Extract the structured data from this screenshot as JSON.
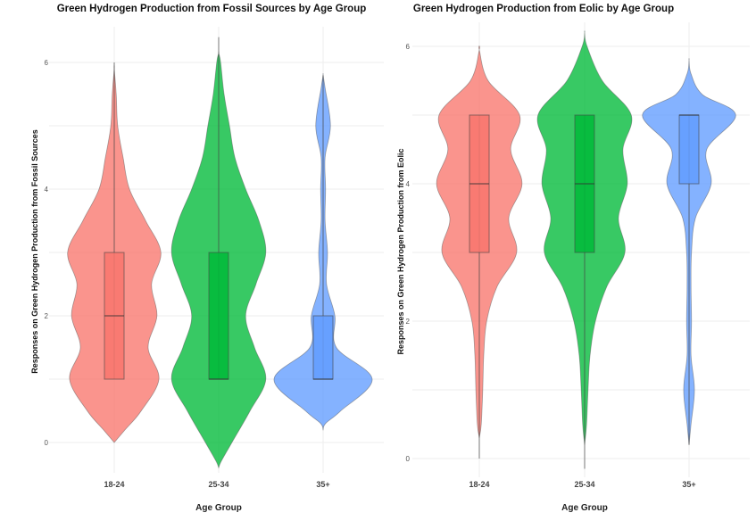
{
  "chart_data": [
    {
      "type": "violin",
      "title": "Green Hydrogen Production from Fossil Sources by Age Group",
      "xlabel": "Age Group",
      "ylabel": "Responses on Green Hydrogen Production from Fossil Sources",
      "ylim": [
        -0.5,
        6.5
      ],
      "yticks": [
        "0",
        "2",
        "4",
        "6"
      ],
      "grid": true,
      "categories": [
        "18-24",
        "25-34",
        "35+"
      ],
      "colors": [
        "#F8766D",
        "#00BA38",
        "#619CFF"
      ],
      "series": [
        {
          "name": "18-24",
          "box": {
            "q1": 1,
            "median": 2,
            "q3": 3,
            "whisker_low": 1,
            "whisker_high": 6
          },
          "density": [
            [
              0,
              0
            ],
            [
              0.2,
              0.22
            ],
            [
              0.5,
              0.55
            ],
            [
              1,
              0.91
            ],
            [
              1.5,
              0.69
            ],
            [
              2,
              0.87
            ],
            [
              2.5,
              0.76
            ],
            [
              3,
              0.95
            ],
            [
              3.5,
              0.64
            ],
            [
              4,
              0.31
            ],
            [
              4.5,
              0.18
            ],
            [
              5,
              0.07
            ],
            [
              5.5,
              0.04
            ],
            [
              5.9,
              0
            ]
          ]
        },
        {
          "name": "25-34",
          "box": {
            "q1": 1,
            "median": 1,
            "q3": 3,
            "whisker_low": 1,
            "whisker_high": 6.4
          },
          "density": [
            [
              -0.4,
              0
            ],
            [
              -0.3,
              0.05
            ],
            [
              0,
              0.27
            ],
            [
              0.5,
              0.64
            ],
            [
              1,
              0.96
            ],
            [
              1.5,
              0.73
            ],
            [
              2,
              0.55
            ],
            [
              2.5,
              0.76
            ],
            [
              3,
              0.96
            ],
            [
              3.5,
              0.82
            ],
            [
              4,
              0.55
            ],
            [
              4.5,
              0.33
            ],
            [
              5,
              0.22
            ],
            [
              5.5,
              0.11
            ],
            [
              6,
              0.04
            ],
            [
              6.15,
              0
            ]
          ]
        },
        {
          "name": "35+",
          "box": {
            "q1": 1,
            "median": 1,
            "q3": 2,
            "whisker_low": 1,
            "whisker_high": 5.8
          },
          "density": [
            [
              0.2,
              0
            ],
            [
              0.3,
              0.05
            ],
            [
              0.5,
              0.36
            ],
            [
              1,
              1.0
            ],
            [
              1.5,
              0.27
            ],
            [
              2,
              0.24
            ],
            [
              2.5,
              0.07
            ],
            [
              3,
              0.09
            ],
            [
              3.5,
              0.04
            ],
            [
              4,
              0.05
            ],
            [
              4.5,
              0.04
            ],
            [
              5,
              0.15
            ],
            [
              5.6,
              0.04
            ],
            [
              5.8,
              0
            ]
          ]
        }
      ]
    },
    {
      "type": "violin",
      "title": "Green Hydrogen Production from Eolic by Age Group",
      "xlabel": "Age Group",
      "ylabel": "Responses on Green Hydrogen Production from Eolic",
      "ylim": [
        -0.3,
        6.4
      ],
      "yticks": [
        "0",
        "2",
        "4",
        "6"
      ],
      "grid": true,
      "categories": [
        "18-24",
        "25-34",
        "35+"
      ],
      "colors": [
        "#F8766D",
        "#00BA38",
        "#619CFF"
      ],
      "series": [
        {
          "name": "18-24",
          "box": {
            "q1": 3,
            "median": 4,
            "q3": 5,
            "whisker_low": 0,
            "whisker_high": 5
          },
          "density": [
            [
              0.3,
              0
            ],
            [
              0.5,
              0.04
            ],
            [
              1,
              0.07
            ],
            [
              1.5,
              0.09
            ],
            [
              2,
              0.15
            ],
            [
              2.5,
              0.36
            ],
            [
              3,
              0.76
            ],
            [
              3.5,
              0.6
            ],
            [
              4,
              0.87
            ],
            [
              4.5,
              0.64
            ],
            [
              5,
              0.82
            ],
            [
              5.5,
              0.18
            ],
            [
              5.95,
              0
            ]
          ]
        },
        {
          "name": "25-34",
          "box": {
            "q1": 3,
            "median": 4,
            "q3": 5,
            "whisker_low": -0.15,
            "whisker_high": 5
          },
          "density": [
            [
              0.2,
              0
            ],
            [
              0.5,
              0.04
            ],
            [
              1,
              0.07
            ],
            [
              1.5,
              0.11
            ],
            [
              2,
              0.22
            ],
            [
              2.5,
              0.45
            ],
            [
              3,
              0.82
            ],
            [
              3.5,
              0.69
            ],
            [
              4,
              0.87
            ],
            [
              4.5,
              0.78
            ],
            [
              5,
              0.95
            ],
            [
              5.5,
              0.36
            ],
            [
              6,
              0.05
            ],
            [
              6.2,
              0
            ]
          ]
        },
        {
          "name": "35+",
          "box": {
            "q1": 4,
            "median": 5,
            "q3": 5,
            "whisker_low": 0.2,
            "whisker_high": 5
          },
          "density": [
            [
              0.2,
              0
            ],
            [
              0.5,
              0.04
            ],
            [
              1,
              0.11
            ],
            [
              1.5,
              0.04
            ],
            [
              2,
              0.05
            ],
            [
              2.5,
              0.04
            ],
            [
              3,
              0.05
            ],
            [
              3.5,
              0.13
            ],
            [
              4,
              0.45
            ],
            [
              4.5,
              0.36
            ],
            [
              5,
              0.95
            ],
            [
              5.3,
              0.27
            ],
            [
              5.6,
              0.04
            ],
            [
              5.8,
              0
            ]
          ]
        }
      ]
    }
  ]
}
